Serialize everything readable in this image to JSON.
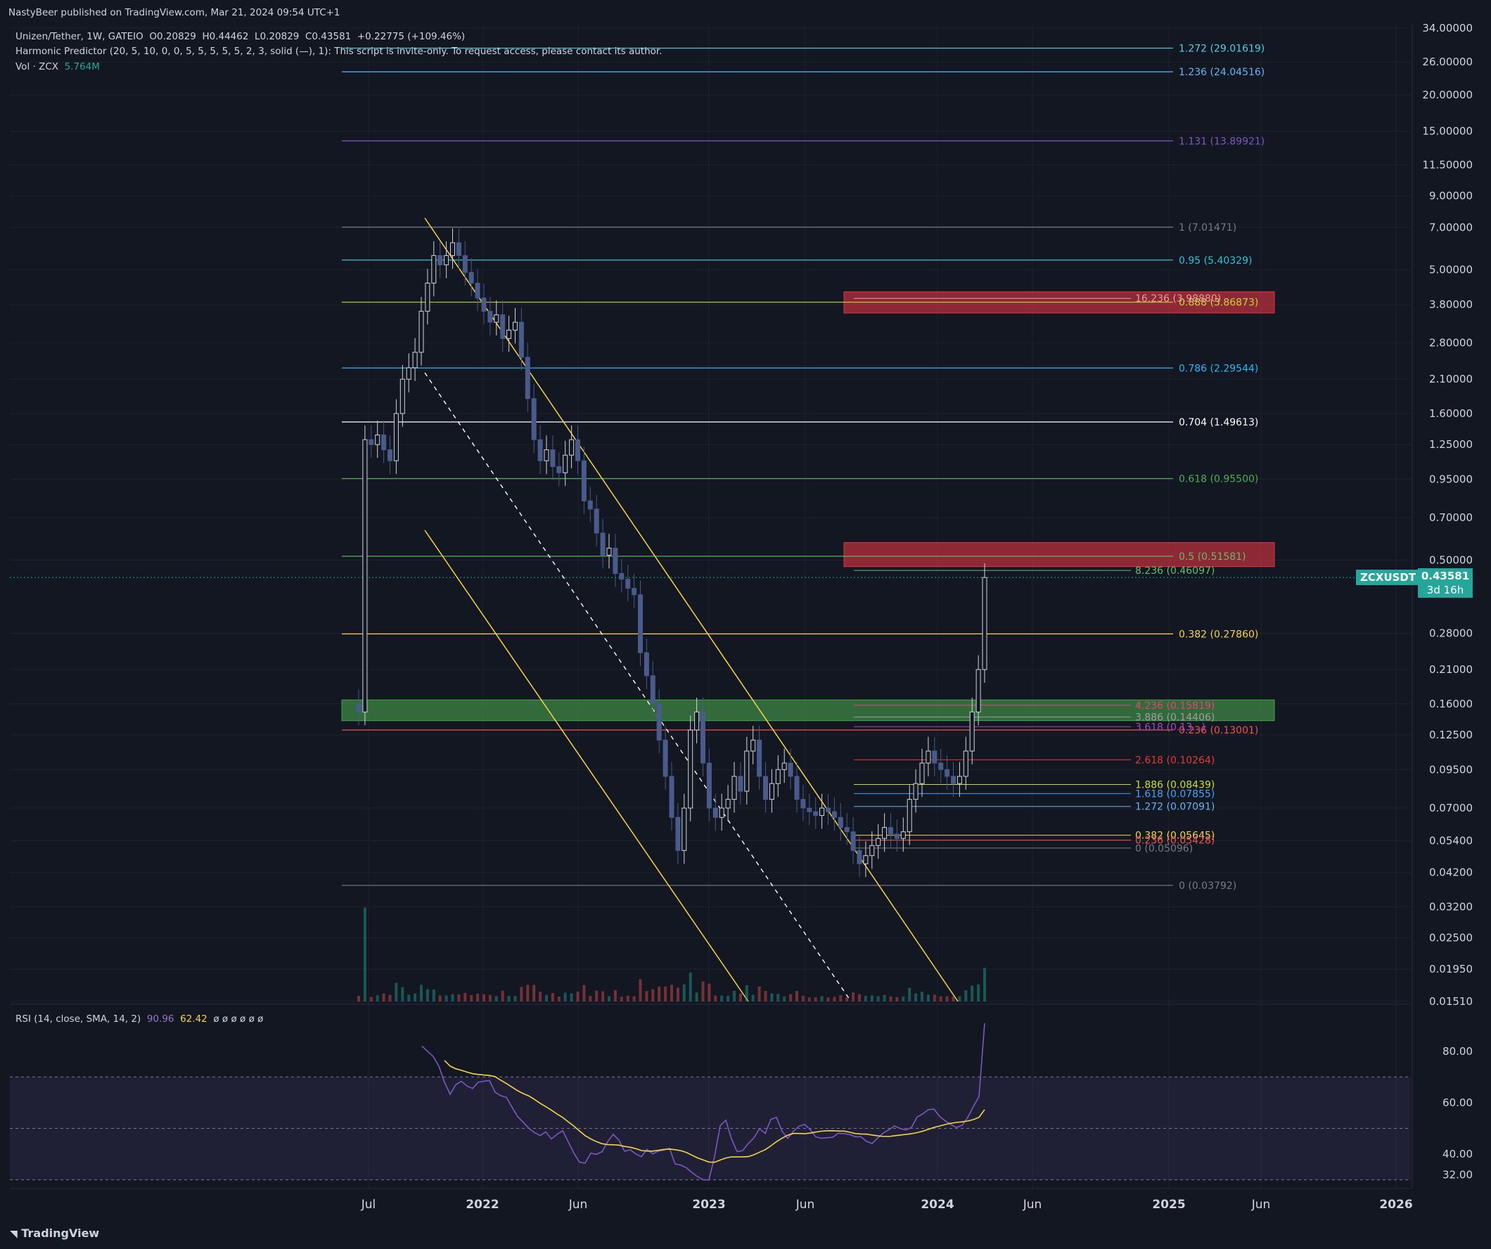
{
  "header": {
    "published": "NastyBeer published on TradingView.com, Mar 21, 2024 09:54 UTC+1",
    "symbol_line": "Unizen/Tether, 1W, GATEIO",
    "ohlc": {
      "o_label": "O",
      "o": "0.20829",
      "h_label": "H",
      "h": "0.44462",
      "l_label": "L",
      "l": "0.20829",
      "c_label": "C",
      "c": "0.43581",
      "change": "+0.22775 (+109.46%)"
    },
    "indicator": "Harmonic Predictor (20, 5, 10, 0, 0, 5, 5, 5, 5, 5, 2, 3, solid (—), 1): This script is invite-only. To request access, please contact its author.",
    "vol_label": "Vol · ZCX",
    "vol_value": "5.764M",
    "rsi_label": "RSI (14, close, SMA, 14, 2)",
    "rsi_value": "90.96",
    "rsi_sma": "62.42",
    "rsi_nulls": "ø ø ø ø ø ø"
  },
  "footer": {
    "brand": "TradingView"
  },
  "colors": {
    "bg": "#131722",
    "up": "#d1d4dc",
    "down": "#4a5a8a",
    "accent": "#26a69a",
    "rsi": "#7e57c2",
    "rsi_sma": "#f5d547",
    "channel": "#f5d547"
  },
  "chart_data": {
    "type": "candlestick",
    "symbol": "ZCXUSDT",
    "current_price": {
      "label": "ZCXUSDT",
      "value": "0.43581",
      "countdown": "3d 16h"
    },
    "y_scale": "log",
    "y_ticks": [
      "34.00000",
      "26.00000",
      "20.00000",
      "15.00000",
      "11.50000",
      "9.00000",
      "7.00000",
      "5.00000",
      "3.80000",
      "2.80000",
      "2.10000",
      "1.60000",
      "1.25000",
      "0.95000",
      "0.70000",
      "0.50000",
      "0.28000",
      "0.21000",
      "0.16000",
      "0.12500",
      "0.09500",
      "0.07000",
      "0.05400",
      "0.04200",
      "0.03200",
      "0.02500",
      "0.01950",
      "0.01510"
    ],
    "x_ticks": [
      "Jul",
      "2022",
      "Jun",
      "2023",
      "Jun",
      "2024",
      "Jun",
      "2025",
      "Jun",
      "2026"
    ],
    "fib_levels": [
      {
        "label": "1.272 (29.01619)",
        "value": 29.01619,
        "color": "#4dd0e1"
      },
      {
        "label": "1.236 (24.04516)",
        "value": 24.04516,
        "color": "#64b5f6"
      },
      {
        "label": "1.131 (13.89921)",
        "value": 13.89921,
        "color": "#7e57c2"
      },
      {
        "label": "1 (7.01471)",
        "value": 7.01471,
        "color": "#787b86"
      },
      {
        "label": "0.95 (5.40329)",
        "value": 5.40329,
        "color": "#26c6da"
      },
      {
        "label": "0.888 (3.86873)",
        "value": 3.86873,
        "color": "#c6d43c"
      },
      {
        "label": "0.786 (2.29544)",
        "value": 2.29544,
        "color": "#29b6f6"
      },
      {
        "label": "0.704 (1.49613)",
        "value": 1.49613,
        "color": "#ffffff"
      },
      {
        "label": "0.618 (0.95500)",
        "value": 0.955,
        "color": "#4caf50"
      },
      {
        "label": "0.5 (0.51581)",
        "value": 0.51581,
        "color": "#66bb6a"
      },
      {
        "label": "0.382 (0.27860)",
        "value": 0.2786,
        "color": "#f5d547"
      },
      {
        "label": "0.236 (0.13001)",
        "value": 0.13001,
        "color": "#ef5350"
      },
      {
        "label": "0 (0.03792)",
        "value": 0.03792,
        "color": "#787b86"
      }
    ],
    "predictor_levels": [
      {
        "label": "16.236 (3.98880)",
        "value": 3.9888,
        "color": "#ef9a9a"
      },
      {
        "label": "8.236 (0.46097)",
        "value": 0.46097,
        "color": "#66bb6a"
      },
      {
        "label": "4.236 (0.15819)",
        "value": 0.15819,
        "color": "#ec407a"
      },
      {
        "label": "3.886 (0.14406)",
        "value": 0.14406,
        "color": "#9e9e9e"
      },
      {
        "label": "3.618 (0.13...)",
        "value": 0.1335,
        "color": "#ab47bc"
      },
      {
        "label": "2.618 (0.10264)",
        "value": 0.10264,
        "color": "#e53935"
      },
      {
        "label": "1.886 (0.08439)",
        "value": 0.08439,
        "color": "#cddc39"
      },
      {
        "label": "1.618 (0.07855)",
        "value": 0.07855,
        "color": "#42a5f5"
      },
      {
        "label": "1.272 (0.07091)",
        "value": 0.07091,
        "color": "#64b5f6"
      },
      {
        "label": "0.382 (0.05645)",
        "value": 0.05645,
        "color": "#f5d547"
      },
      {
        "label": "0.236 (0.05428)",
        "value": 0.05428,
        "color": "#ef5350"
      },
      {
        "label": "0 (0.05096)",
        "value": 0.05096,
        "color": "#787b86"
      }
    ],
    "zones": [
      {
        "name": "upper red zone",
        "low": 3.55,
        "high": 4.2,
        "color": "#f23645"
      },
      {
        "name": "middle red zone",
        "low": 0.475,
        "high": 0.575,
        "color": "#f23645"
      },
      {
        "name": "green support zone",
        "low": 0.14,
        "high": 0.165,
        "color": "#4caf50"
      }
    ],
    "candles_weekly_close": [
      0.15,
      1.3,
      1.25,
      1.35,
      1.2,
      1.1,
      1.6,
      2.1,
      2.3,
      2.6,
      3.6,
      4.5,
      5.6,
      5.2,
      5.6,
      6.2,
      5.6,
      4.9,
      4.5,
      4.0,
      3.6,
      3.3,
      3.5,
      2.9,
      3.1,
      3.3,
      2.5,
      1.8,
      1.3,
      1.1,
      1.2,
      1.05,
      1.0,
      1.15,
      1.3,
      1.1,
      0.8,
      0.75,
      0.62,
      0.52,
      0.55,
      0.45,
      0.43,
      0.4,
      0.38,
      0.24,
      0.2,
      0.16,
      0.12,
      0.09,
      0.065,
      0.05,
      0.07,
      0.13,
      0.15,
      0.1,
      0.07,
      0.065,
      0.07,
      0.075,
      0.09,
      0.08,
      0.11,
      0.12,
      0.09,
      0.075,
      0.085,
      0.095,
      0.1,
      0.09,
      0.075,
      0.07,
      0.068,
      0.066,
      0.07,
      0.068,
      0.065,
      0.06,
      0.058,
      0.05,
      0.045,
      0.048,
      0.052,
      0.055,
      0.06,
      0.057,
      0.055,
      0.058,
      0.075,
      0.085,
      0.1,
      0.11,
      0.1,
      0.095,
      0.09,
      0.085,
      0.09,
      0.11,
      0.15,
      0.21,
      0.43581
    ],
    "rsi": {
      "y_ticks": [
        "80.00",
        "60.00",
        "40.00",
        "32.00"
      ],
      "upper_band": 70,
      "lower_band": 30,
      "mid": 50
    }
  }
}
